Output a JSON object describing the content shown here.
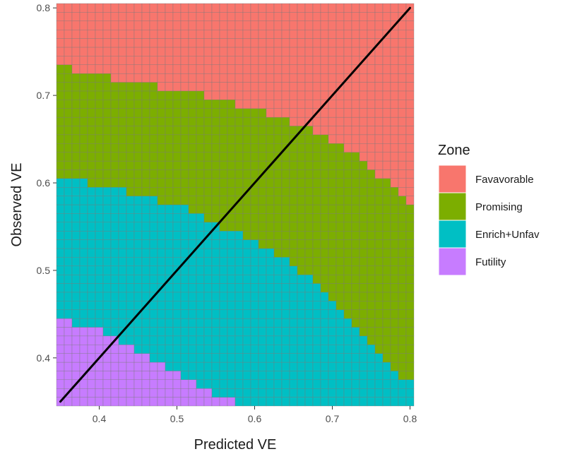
{
  "chart_data": {
    "type": "heatmap",
    "xlabel": "Predicted VE",
    "ylabel": "Observed VE",
    "xlim": [
      0.345,
      0.805
    ],
    "ylim": [
      0.345,
      0.805
    ],
    "x_ticks": [
      "0.4",
      "0.5",
      "0.6",
      "0.7",
      "0.8"
    ],
    "y_ticks": [
      "0.4",
      "0.5",
      "0.6",
      "0.7",
      "0.8"
    ],
    "cell_size": 0.01,
    "grid_range": [
      0.35,
      0.8
    ],
    "grid": true,
    "legend": {
      "title": "Zone",
      "position": "right",
      "entries": [
        {
          "key": "favorable",
          "label": "Favavorable",
          "color": "#F8766D"
        },
        {
          "key": "promising",
          "label": "Promising",
          "color": "#7CAE00"
        },
        {
          "key": "enrich",
          "label": "Enrich+Unfav",
          "color": "#00BFC4"
        },
        {
          "key": "futility",
          "label": "Futility",
          "color": "#C77CFF"
        }
      ]
    },
    "boundaries": {
      "x": [
        0.35,
        0.36,
        0.37,
        0.38,
        0.39,
        0.4,
        0.41,
        0.42,
        0.43,
        0.44,
        0.45,
        0.46,
        0.47,
        0.48,
        0.49,
        0.5,
        0.51,
        0.52,
        0.53,
        0.54,
        0.55,
        0.56,
        0.57,
        0.58,
        0.59,
        0.6,
        0.61,
        0.62,
        0.63,
        0.64,
        0.65,
        0.66,
        0.67,
        0.68,
        0.69,
        0.7,
        0.71,
        0.72,
        0.73,
        0.74,
        0.75,
        0.76,
        0.77,
        0.78,
        0.79,
        0.8
      ],
      "favorable_lower": [
        0.74,
        0.74,
        0.73,
        0.73,
        0.73,
        0.73,
        0.73,
        0.72,
        0.72,
        0.72,
        0.72,
        0.72,
        0.72,
        0.71,
        0.71,
        0.71,
        0.71,
        0.71,
        0.71,
        0.7,
        0.7,
        0.7,
        0.7,
        0.69,
        0.69,
        0.69,
        0.69,
        0.68,
        0.68,
        0.68,
        0.67,
        0.67,
        0.67,
        0.66,
        0.66,
        0.65,
        0.65,
        0.64,
        0.64,
        0.63,
        0.62,
        0.61,
        0.61,
        0.6,
        0.59,
        0.58
      ],
      "promising_lower": [
        0.61,
        0.61,
        0.61,
        0.61,
        0.6,
        0.6,
        0.6,
        0.6,
        0.6,
        0.59,
        0.59,
        0.59,
        0.59,
        0.58,
        0.58,
        0.58,
        0.58,
        0.57,
        0.57,
        0.56,
        0.56,
        0.55,
        0.55,
        0.55,
        0.54,
        0.54,
        0.53,
        0.53,
        0.52,
        0.52,
        0.51,
        0.5,
        0.5,
        0.49,
        0.48,
        0.47,
        0.46,
        0.45,
        0.44,
        0.43,
        0.42,
        0.41,
        0.4,
        0.39,
        0.38,
        0.38
      ],
      "enrich_lower": [
        0.45,
        0.45,
        0.44,
        0.44,
        0.44,
        0.44,
        0.43,
        0.43,
        0.42,
        0.42,
        0.41,
        0.41,
        0.4,
        0.4,
        0.39,
        0.39,
        0.38,
        0.38,
        0.37,
        0.37,
        0.36,
        0.36,
        0.36,
        0.35,
        0.35,
        0.35,
        0.35,
        0.35,
        0.35,
        0.35,
        0.35,
        0.35,
        0.35,
        0.35,
        0.35,
        0.35,
        0.35,
        0.35,
        0.35,
        0.35,
        0.35,
        0.35,
        0.35,
        0.35,
        0.35,
        0.35
      ]
    },
    "reference_line": {
      "x": [
        0.35,
        0.8
      ],
      "y": [
        0.35,
        0.8
      ],
      "color": "#000000"
    }
  }
}
